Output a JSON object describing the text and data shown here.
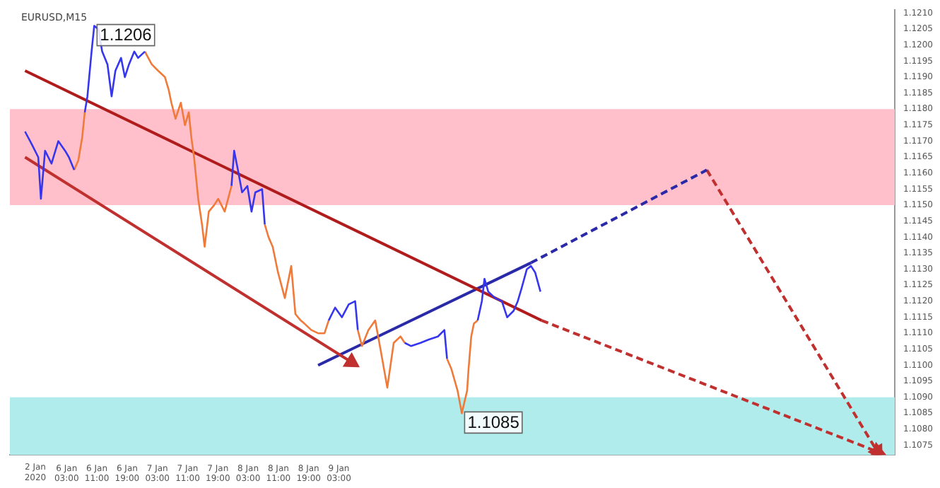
{
  "chart_data": {
    "type": "line",
    "title": "EURUSD,M15",
    "x": [
      "2020-01-05T16:00",
      "2020-01-05T17:48",
      "2020-01-05T19:30",
      "2020-01-05T20:12",
      "2020-01-05T21:18",
      "2020-01-05T23:00",
      "2020-01-06T00:48",
      "2020-01-06T02:36",
      "2020-01-06T03:36",
      "2020-01-06T05:00",
      "2020-01-06T06:06",
      "2020-01-06T07:06",
      "2020-01-06T07:48",
      "2020-01-06T08:30",
      "2020-01-06T09:36",
      "2020-01-06T10:18",
      "2020-01-06T11:24",
      "2020-01-06T12:24",
      "2020-01-06T13:48",
      "2020-01-06T14:54",
      "2020-01-06T15:54",
      "2020-01-06T17:24",
      "2020-01-06T18:24",
      "2020-01-06T19:30",
      "2020-01-06T20:54",
      "2020-01-06T21:54",
      "2020-01-06T23:42",
      "2020-01-07T01:30",
      "2020-01-07T03:12",
      "2020-01-07T05:00",
      "2020-01-07T06:00",
      "2020-01-07T06:42",
      "2020-01-07T07:48",
      "2020-01-07T09:12",
      "2020-01-07T10:18",
      "2020-01-07T11:18",
      "2020-01-07T12:00",
      "2020-01-07T12:42",
      "2020-01-07T13:48",
      "2020-01-07T14:48",
      "2020-01-07T15:30",
      "2020-01-07T16:36",
      "2020-01-07T18:00",
      "2020-01-07T19:06",
      "2020-01-07T20:48",
      "2020-01-07T22:36",
      "2020-01-07T23:18",
      "2020-01-08T00:18",
      "2020-01-08T01:24",
      "2020-01-08T02:48",
      "2020-01-08T03:54",
      "2020-01-08T04:54",
      "2020-01-08T06:42",
      "2020-01-08T07:24",
      "2020-01-08T08:24",
      "2020-01-08T09:30",
      "2020-01-08T10:54",
      "2020-01-08T12:42",
      "2020-01-08T14:24",
      "2020-01-08T15:30",
      "2020-01-08T16:54",
      "2020-01-08T17:54",
      "2020-01-08T19:42",
      "2020-01-08T21:30",
      "2020-01-08T23:12",
      "2020-01-09T00:18",
      "2020-01-09T02:00",
      "2020-01-09T03:48",
      "2020-01-09T05:36",
      "2020-01-09T07:18",
      "2020-01-09T08:00",
      "2020-01-09T09:06",
      "2020-01-09T10:48",
      "2020-01-09T12:36",
      "2020-01-09T14:00",
      "2020-01-09T15:48",
      "2020-01-09T17:30",
      "2020-01-09T19:18",
      "2020-01-09T20:24",
      "2020-01-09T22:06",
      "2020-01-10T00:36",
      "2020-01-10T02:42",
      "2020-01-10T05:12",
      "2020-01-10T06:54",
      "2020-01-10T07:36",
      "2020-01-10T08:42",
      "2020-01-10T10:24",
      "2020-01-10T11:30",
      "2020-01-10T12:54",
      "2020-01-10T13:18",
      "2020-01-10T14:00",
      "2020-01-10T14:42",
      "2020-01-10T15:42",
      "2020-01-10T16:48",
      "2020-01-10T17:30",
      "2020-01-10T18:30",
      "2020-01-10T20:18",
      "2020-01-10T22:06",
      "2020-01-10T23:30",
      "2020-01-11T01:12",
      "2020-01-11T02:18",
      "2020-01-11T03:18",
      "2020-01-11T04:42",
      "2020-01-11T05:48",
      "2020-01-11T06:54",
      "2020-01-11T08:18"
    ],
    "series": [
      {
        "color": "#3636ee",
        "values": [
          1.1173,
          1.1169,
          1.1165,
          1.1152,
          1.1167,
          1.1163,
          1.117,
          1.1167,
          1.1165,
          1.1161,
          null,
          null,
          1.1179,
          1.1184,
          1.1198,
          1.1206,
          1.1205,
          1.1198,
          1.1194,
          1.1184,
          1.1192,
          1.1196,
          1.119,
          1.1194,
          1.1198,
          1.1196,
          1.1198,
          null,
          null,
          null,
          null,
          null,
          null,
          null,
          null,
          null,
          null,
          null,
          null,
          null,
          null,
          null,
          null,
          null,
          null,
          1.1156,
          1.1167,
          1.1161,
          1.1154,
          1.1156,
          1.1148,
          1.1154,
          1.1155,
          1.1144,
          null,
          null,
          null,
          null,
          null,
          null,
          null,
          null,
          null,
          null,
          null,
          1.1114,
          1.1118,
          1.1115,
          1.1119,
          1.112,
          1.1111,
          null,
          null,
          null,
          null,
          null,
          null,
          null,
          1.1107,
          1.1106,
          1.1107,
          1.1108,
          1.1109,
          1.1111,
          1.1102,
          null,
          null,
          null,
          null,
          null,
          null,
          null,
          1.1114,
          1.112,
          1.1127,
          1.1123,
          1.1121,
          1.112,
          1.1115,
          1.1117,
          1.112,
          1.1124,
          1.113,
          1.1131,
          1.1129,
          1.1123
        ]
      },
      {
        "color": "#f07a3a",
        "values": [
          null,
          null,
          null,
          null,
          null,
          null,
          null,
          null,
          null,
          1.1161,
          1.1164,
          1.1171,
          1.1179,
          null,
          null,
          null,
          null,
          null,
          null,
          null,
          null,
          null,
          null,
          null,
          null,
          null,
          1.1198,
          1.1194,
          1.1192,
          1.119,
          1.1186,
          1.1182,
          1.1177,
          1.1182,
          1.1175,
          1.1179,
          1.1171,
          1.1165,
          1.1152,
          1.1144,
          1.1137,
          1.1148,
          1.115,
          1.1152,
          1.1148,
          1.1156,
          null,
          null,
          null,
          null,
          null,
          null,
          null,
          1.1144,
          1.114,
          1.1137,
          1.1129,
          1.1121,
          1.1131,
          1.1116,
          1.1114,
          1.1113,
          1.1111,
          1.111,
          1.111,
          1.1114,
          null,
          null,
          null,
          null,
          1.1111,
          1.1106,
          1.1111,
          1.1114,
          1.1105,
          1.1093,
          1.1107,
          1.1109,
          1.1107,
          null,
          null,
          null,
          null,
          null,
          1.1102,
          1.1099,
          1.1092,
          1.1085,
          1.1092,
          1.1099,
          1.1109,
          1.1113,
          1.1114,
          null,
          null,
          null,
          null,
          null,
          null,
          null,
          null,
          null,
          null,
          null,
          null,
          null
        ]
      },
      {
        "type": "line",
        "color": "#b01c1c",
        "x": [
          "2020-01-05T16:00",
          "2020-01-11T08:36"
        ],
        "values": [
          1.1192,
          1.1114
        ]
      },
      {
        "type": "line",
        "color": "#c0302f",
        "x": [
          "2020-01-05T16:00",
          "2020-01-09T06:18"
        ],
        "values": [
          1.1165,
          1.1101
        ],
        "marker": "triangle"
      },
      {
        "type": "line",
        "color": "#2a2aa8",
        "x": [
          "2020-01-08T21:30",
          "2020-01-11T05:48"
        ],
        "values": [
          1.11,
          1.1132
        ]
      },
      {
        "type": "line",
        "color": "#2a2aa8",
        "x": [
          "2020-01-11T05:48",
          "2020-01-13T04:18"
        ],
        "values": [
          1.1132,
          1.1161
        ],
        "line_style": "dashed"
      },
      {
        "type": "line",
        "color": "#c0302f",
        "x": [
          "2020-01-13T04:18",
          "2020-01-15T01:24"
        ],
        "values": [
          1.1161,
          1.1073
        ],
        "line_style": "dashed",
        "marker": "triangle"
      },
      {
        "type": "line",
        "color": "#c0302f",
        "x": [
          "2020-01-11T08:36",
          "2020-01-15T01:24"
        ],
        "values": [
          1.1114,
          1.1073
        ],
        "line_style": "dashed",
        "marker": "triangle"
      }
    ],
    "xlim": [
      "2020-01-05T12:00",
      "2020-01-15T06:00"
    ],
    "xticks": [
      {
        "value": "2020-01-06T03:00",
        "label": "6 Jan 03:00"
      },
      {
        "value": "2020-01-06T11:00",
        "label": "6 Jan 11:00"
      },
      {
        "value": "2020-01-06T19:00",
        "label": "6 Jan 19:00"
      },
      {
        "value": "2020-01-07T03:00",
        "label": "7 Jan 03:00"
      },
      {
        "value": "2020-01-07T11:00",
        "label": "7 Jan 11:00"
      },
      {
        "value": "2020-01-07T19:00",
        "label": "7 Jan 19:00"
      },
      {
        "value": "2020-01-08T03:00",
        "label": "8 Jan 03:00"
      },
      {
        "value": "2020-01-08T11:00",
        "label": "8 Jan 11:00"
      },
      {
        "value": "2020-01-08T19:00",
        "label": "8 Jan 19:00"
      },
      {
        "value": "2020-01-09T03:00",
        "label": "9 Jan 03:00"
      }
    ],
    "ylim": [
      1.1072,
      1.1211
    ],
    "yticks": [
      {
        "value": 1.1075,
        "label": "1.1075"
      },
      {
        "value": 1.108,
        "label": "1.1080"
      },
      {
        "value": 1.1085,
        "label": "1.1085"
      },
      {
        "value": 1.109,
        "label": "1.1090"
      },
      {
        "value": 1.1095,
        "label": "1.1095"
      },
      {
        "value": 1.11,
        "label": "1.1100"
      },
      {
        "value": 1.1105,
        "label": "1.1105"
      },
      {
        "value": 1.111,
        "label": "1.1110"
      },
      {
        "value": 1.1115,
        "label": "1.1115"
      },
      {
        "value": 1.112,
        "label": "1.1120"
      },
      {
        "value": 1.1125,
        "label": "1.1125"
      },
      {
        "value": 1.113,
        "label": "1.1130"
      },
      {
        "value": 1.1135,
        "label": "1.1135"
      },
      {
        "value": 1.114,
        "label": "1.1140"
      },
      {
        "value": 1.1145,
        "label": "1.1145"
      },
      {
        "value": 1.115,
        "label": "1.1150"
      },
      {
        "value": 1.1155,
        "label": "1.1155"
      },
      {
        "value": 1.116,
        "label": "1.1160"
      },
      {
        "value": 1.1165,
        "label": "1.1165"
      },
      {
        "value": 1.117,
        "label": "1.1170"
      },
      {
        "value": 1.1175,
        "label": "1.1175"
      },
      {
        "value": 1.118,
        "label": "1.1180"
      },
      {
        "value": 1.1185,
        "label": "1.1185"
      },
      {
        "value": 1.119,
        "label": "1.1190"
      },
      {
        "value": 1.1195,
        "label": "1.1195"
      },
      {
        "value": 1.12,
        "label": "1.1200"
      },
      {
        "value": 1.1205,
        "label": "1.1205"
      },
      {
        "value": 1.121,
        "label": "1.1210"
      }
    ],
    "bands": [
      {
        "axis": "y",
        "from": 1.115,
        "to": 1.118,
        "color": "#ffc0cb"
      },
      {
        "axis": "y",
        "from": 1.1072,
        "to": 1.109,
        "color": "#b0ecec"
      }
    ],
    "annotations": [
      "2 Jan 2020",
      {
        "text": "1.1206",
        "x": "2020-01-06T10:18",
        "y": 1.1206
      },
      {
        "text": "1.1085",
        "x": "2020-01-10T11:30",
        "y": 1.1085
      }
    ],
    "legend": false
  }
}
